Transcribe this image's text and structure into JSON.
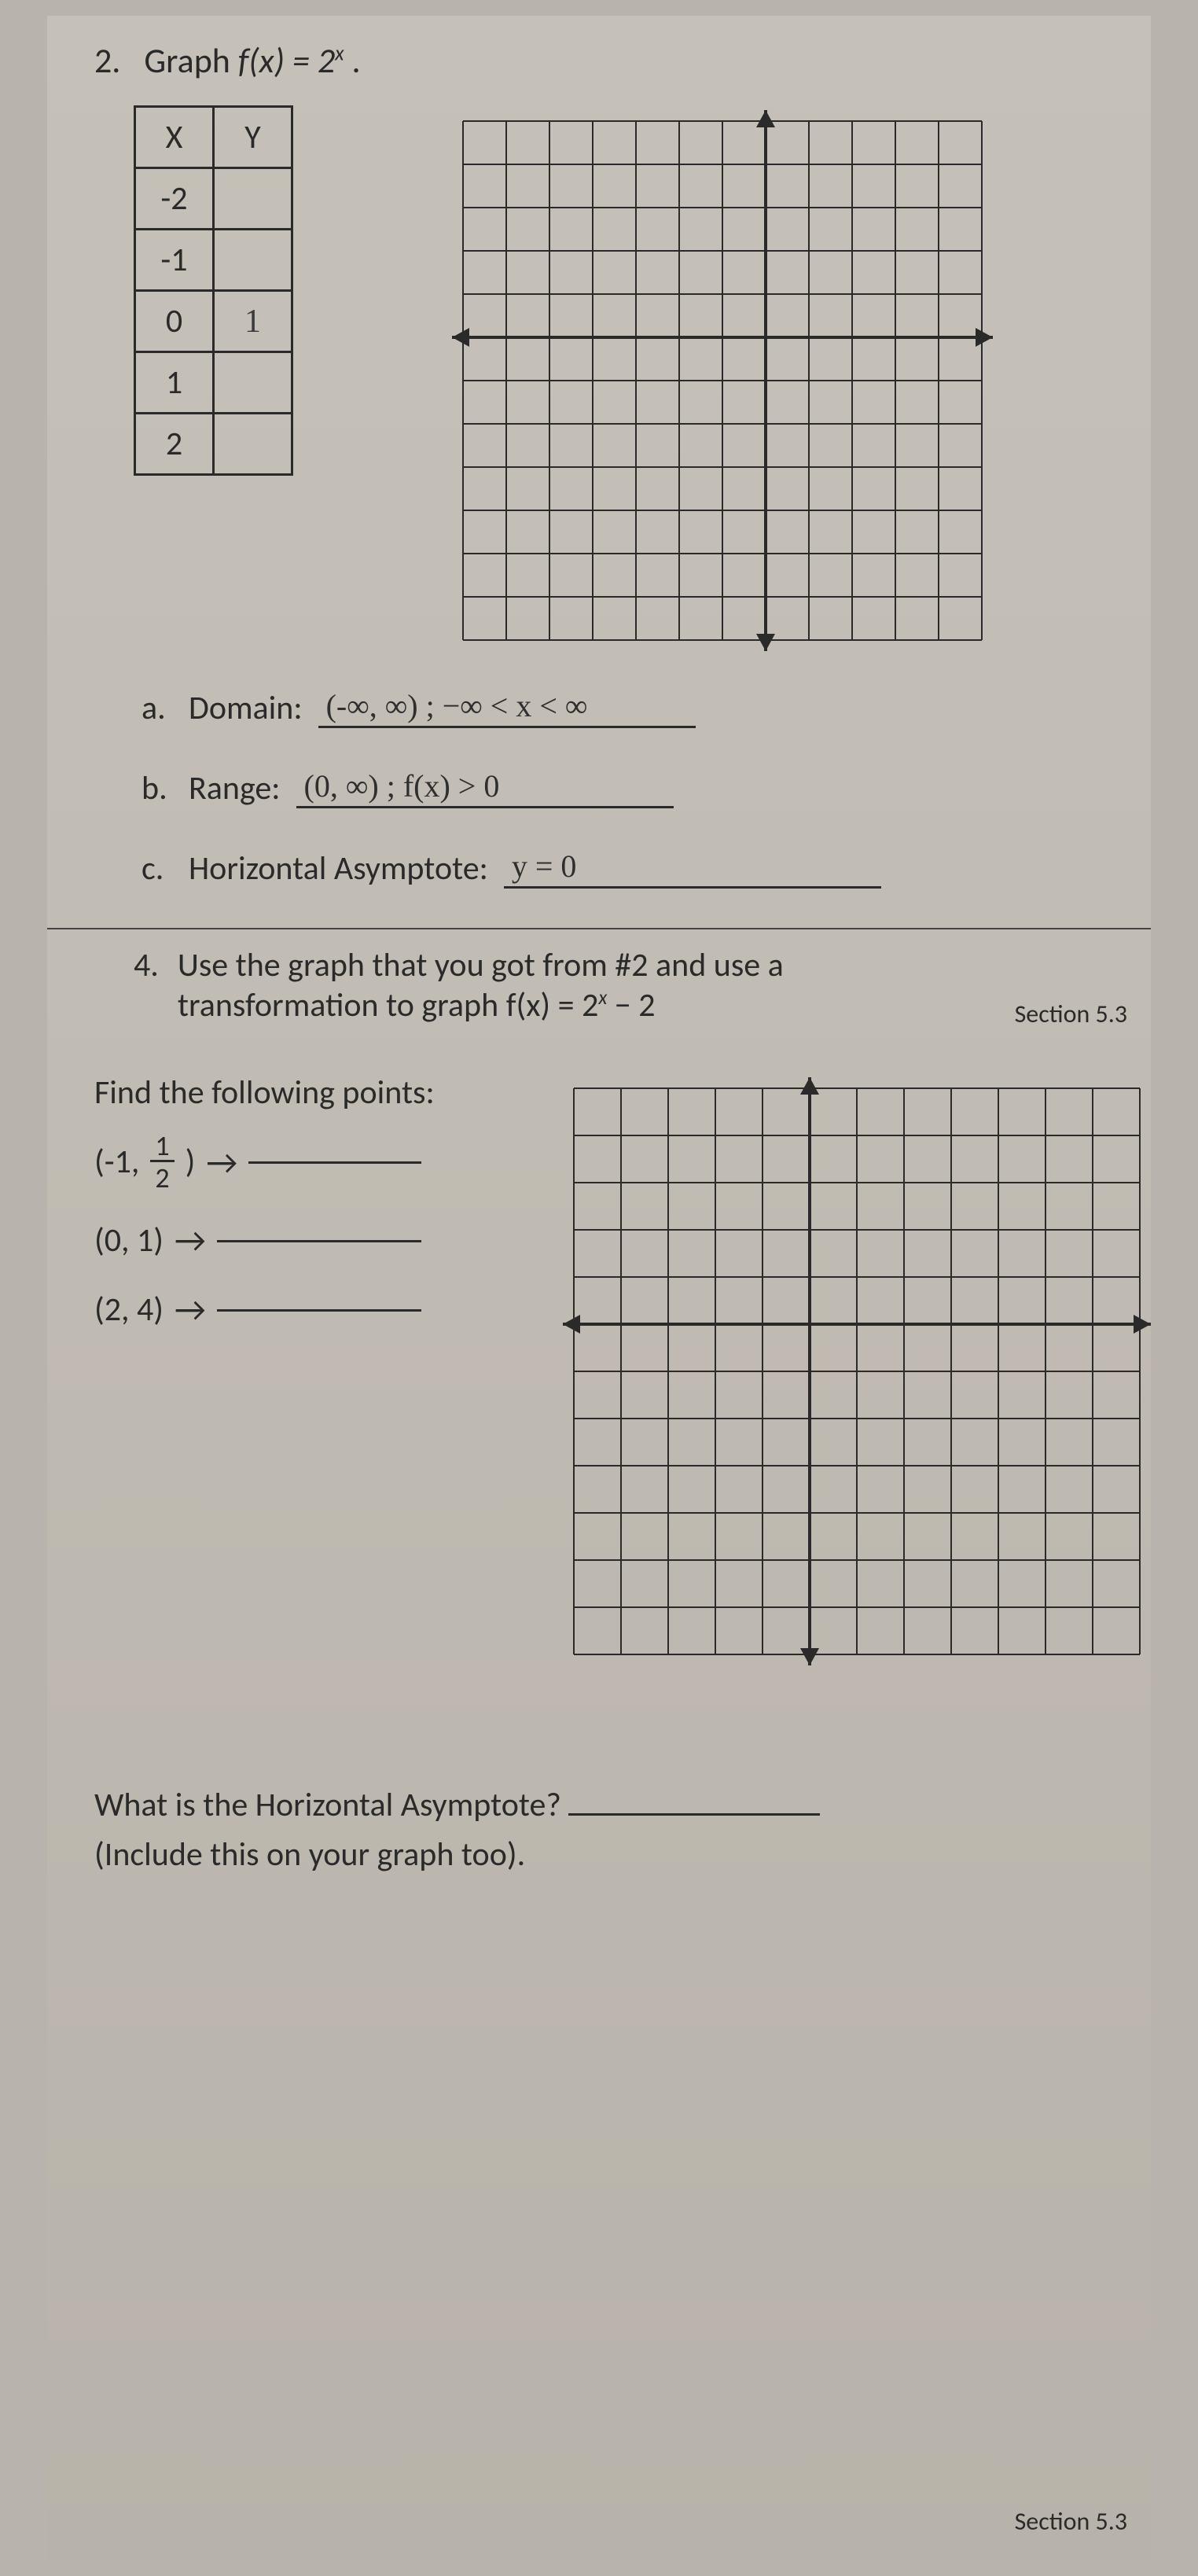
{
  "page": {
    "background_color": "#c5c1b9",
    "text_color": "#2a2a2a",
    "grid_line_color": "#2a2a2a",
    "handwriting_color": "#333333",
    "section_label": "Section 5.3"
  },
  "q2": {
    "number": "2.",
    "prompt_prefix": "Graph ",
    "func_lhs": "f(x) = 2",
    "func_exp": "x",
    "func_suffix": " .",
    "table": {
      "headers": [
        "X",
        "Y"
      ],
      "rows": [
        {
          "x": "-2",
          "y": ""
        },
        {
          "x": "-1",
          "y": ""
        },
        {
          "x": "0",
          "y": "1"
        },
        {
          "x": "1",
          "y": ""
        },
        {
          "x": "2",
          "y": ""
        }
      ],
      "y0_handwritten": true
    },
    "grid": {
      "cols": 12,
      "rows": 12,
      "cell": 55,
      "origin_col": 7,
      "origin_row": 5,
      "line_color": "#2a2a2a",
      "axis_width": 4,
      "has_arrows": true
    },
    "subs": {
      "a": {
        "letter": "a.",
        "label": "Domain:",
        "answer": "(-∞, ∞) ;  −∞ < x < ∞"
      },
      "b": {
        "letter": "b.",
        "label": "Range:",
        "answer": "(0, ∞) ;  f(x) > 0"
      },
      "c": {
        "letter": "c.",
        "label": "Horizontal Asymptote:",
        "answer": "y = 0"
      }
    }
  },
  "q4": {
    "number": "4.",
    "text_line1": "Use the graph that you got from #2 and use a",
    "text_line2_prefix": "transformation to graph ",
    "func_lhs": "f(x) = 2",
    "func_exp": "x",
    "func_suffix": " − 2",
    "points_title": "Find the following points:",
    "points": [
      {
        "display": "(-1, 1/2)",
        "has_frac": true,
        "whole": "-1",
        "num": "1",
        "den": "2"
      },
      {
        "display": "(0, 1)",
        "has_frac": false
      },
      {
        "display": "(2, 4)",
        "has_frac": false
      }
    ],
    "grid": {
      "cols": 12,
      "rows": 12,
      "cell": 60,
      "origin_col": 5,
      "origin_row": 5,
      "line_color": "#2a2a2a",
      "axis_width": 4,
      "has_arrows": true
    },
    "asymptote_q": "What is the Horizontal Asymptote?",
    "asymptote_note": "(Include this on your graph too)."
  }
}
